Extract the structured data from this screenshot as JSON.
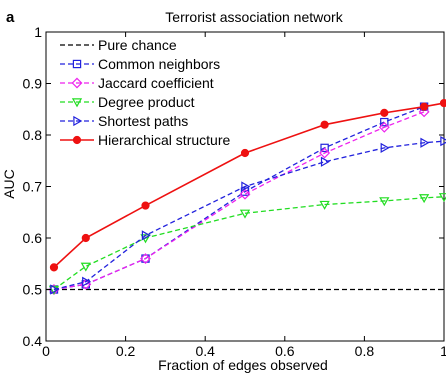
{
  "chart_data": {
    "type": "line",
    "panel_label": "a",
    "title": "Terrorist association network",
    "xlabel": "Fraction of edges observed",
    "ylabel": "AUC",
    "xlim": [
      0,
      1
    ],
    "ylim": [
      0.4,
      1
    ],
    "xticks": [
      0,
      0.2,
      0.4,
      0.6,
      0.8,
      1
    ],
    "xtick_labels": [
      "0",
      "0.2",
      "0.4",
      "0.6",
      "0.8",
      "1"
    ],
    "yticks": [
      0.4,
      0.5,
      0.6,
      0.7,
      0.8,
      0.9,
      1
    ],
    "ytick_labels": [
      "0.4",
      "0.5",
      "0.6",
      "0.7",
      "0.8",
      "0.9",
      "1"
    ],
    "grid": false,
    "legend_position": "top-left",
    "series": [
      {
        "name": "Pure chance",
        "color": "#000000",
        "dash": "dashed",
        "marker": "none",
        "x": [
          0,
          1
        ],
        "y": [
          0.5,
          0.5
        ]
      },
      {
        "name": "Common neighbors",
        "color": "#2222dd",
        "dash": "dashed",
        "marker": "square-open",
        "x": [
          0.02,
          0.1,
          0.25,
          0.5,
          0.7,
          0.85,
          0.95
        ],
        "y": [
          0.5,
          0.51,
          0.56,
          0.69,
          0.775,
          0.825,
          0.855
        ]
      },
      {
        "name": "Jaccard coefficient",
        "color": "#ee22ee",
        "dash": "dashed",
        "marker": "diamond-open",
        "x": [
          0.02,
          0.1,
          0.25,
          0.5,
          0.7,
          0.85,
          0.95
        ],
        "y": [
          0.5,
          0.51,
          0.56,
          0.685,
          0.765,
          0.815,
          0.845
        ]
      },
      {
        "name": "Degree product",
        "color": "#22dd22",
        "dash": "dashed",
        "marker": "triangle-down-open",
        "x": [
          0.02,
          0.1,
          0.25,
          0.5,
          0.7,
          0.85,
          0.95,
          1.0
        ],
        "y": [
          0.5,
          0.545,
          0.6,
          0.648,
          0.665,
          0.672,
          0.678,
          0.68
        ]
      },
      {
        "name": "Shortest paths",
        "color": "#2222dd",
        "dash": "dashed",
        "marker": "triangle-right-open",
        "x": [
          0.02,
          0.1,
          0.25,
          0.5,
          0.7,
          0.85,
          0.95,
          1.0
        ],
        "y": [
          0.5,
          0.515,
          0.605,
          0.7,
          0.748,
          0.775,
          0.785,
          0.788
        ]
      },
      {
        "name": "Hierarchical structure",
        "color": "#ee1111",
        "dash": "solid",
        "marker": "circle-filled",
        "x": [
          0.02,
          0.1,
          0.25,
          0.5,
          0.7,
          0.85,
          0.95,
          1.0
        ],
        "y": [
          0.543,
          0.6,
          0.663,
          0.765,
          0.82,
          0.843,
          0.855,
          0.862
        ]
      }
    ]
  }
}
